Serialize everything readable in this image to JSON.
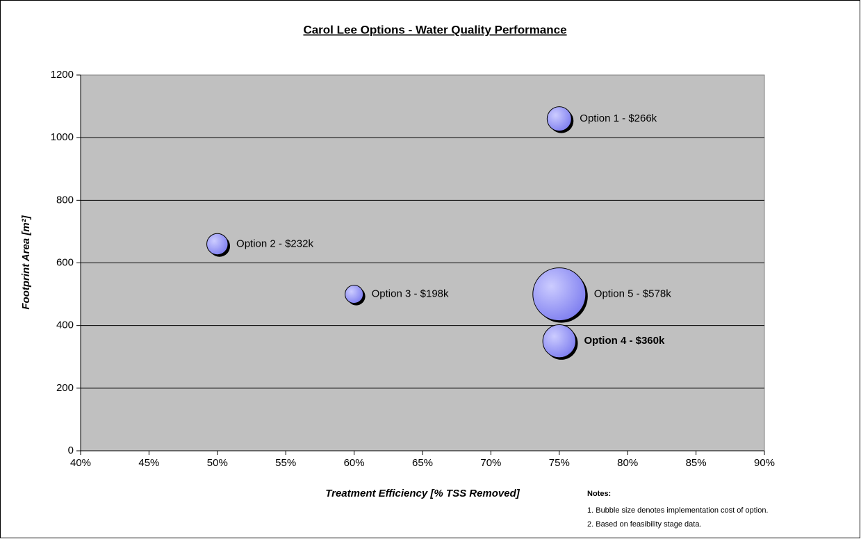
{
  "chart_data": {
    "type": "bubble",
    "title": "Carol Lee Options - Water Quality Performance",
    "x_label": "Treatment Efficiency [% TSS Removed]",
    "y_label": "Footprint Area [m²]",
    "x": [
      75,
      50,
      60,
      75,
      75
    ],
    "values": [
      1060,
      660,
      500,
      350,
      500
    ],
    "sizes": [
      266,
      232,
      198,
      360,
      578
    ],
    "labels": [
      "Option 1 - $266k",
      "Option 2 - $232k",
      "Option 3 - $198k",
      "Option 4 - $360k",
      "Option 5 - $578k"
    ],
    "label_colors": [
      "#000000",
      "#000000",
      "#000000",
      "#ff0000",
      "#000000"
    ],
    "color": "#9999ff",
    "xlim": [
      40,
      90
    ],
    "xticks": [
      {
        "value": 40,
        "label": "40%"
      },
      {
        "value": 45,
        "label": "45%"
      },
      {
        "value": 50,
        "label": "50%"
      },
      {
        "value": 55,
        "label": "55%"
      },
      {
        "value": 60,
        "label": "60%"
      },
      {
        "value": 65,
        "label": "65%"
      },
      {
        "value": 70,
        "label": "70%"
      },
      {
        "value": 75,
        "label": "75%"
      },
      {
        "value": 80,
        "label": "80%"
      },
      {
        "value": 85,
        "label": "85%"
      },
      {
        "value": 90,
        "label": "90%"
      }
    ],
    "ylim": [
      0,
      1200
    ],
    "yticks": [
      0,
      200,
      400,
      600,
      800,
      1000,
      1200
    ],
    "grid": true,
    "notes_title": "Notes:",
    "notes": [
      "1. Bubble size denotes implementation cost of option.",
      "2. Based on feasibility stage data."
    ]
  }
}
